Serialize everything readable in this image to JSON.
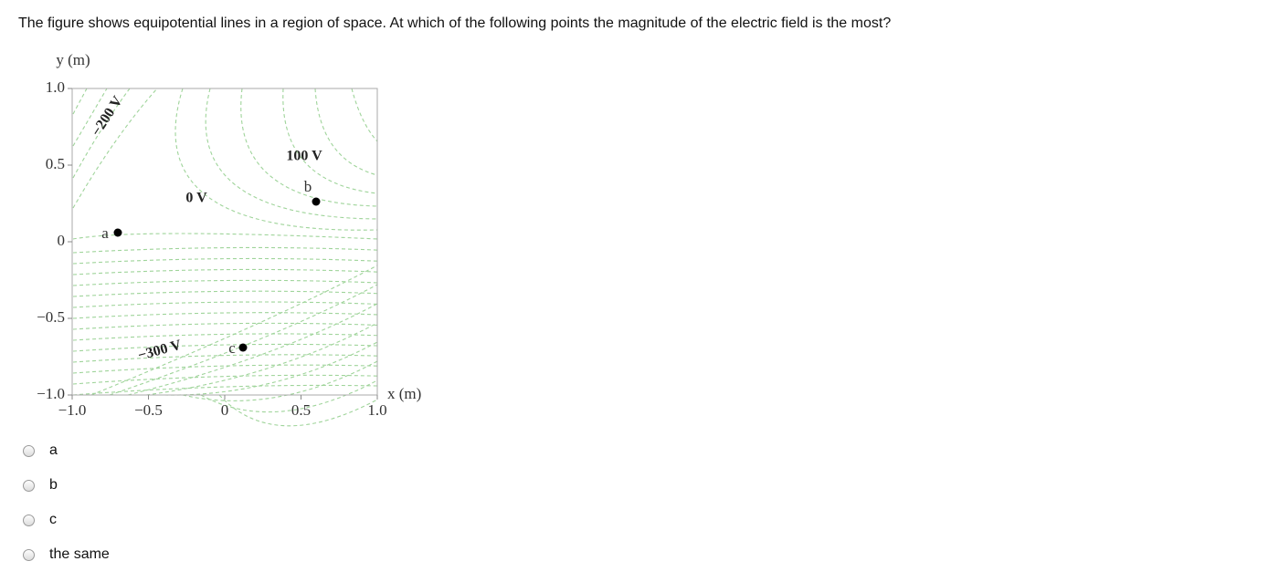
{
  "question": "The figure shows equipotential lines in a region of space. At which of the following points the magnitude of the electric field is the most?",
  "figure": {
    "y_axis_label": "y (m)",
    "x_axis_label": "x (m)",
    "yticks": [
      "1.0",
      "0.5",
      "0",
      "−0.5",
      "−1.0"
    ],
    "xticks": [
      "−1.0",
      "−0.5",
      "0",
      "0.5",
      "1.0"
    ],
    "line_labels": [
      "−200 V",
      "100 V",
      "0 V",
      "−300 V"
    ],
    "points": [
      "a",
      "b",
      "c"
    ]
  },
  "options": [
    "a",
    "b",
    "c",
    "the same"
  ]
}
